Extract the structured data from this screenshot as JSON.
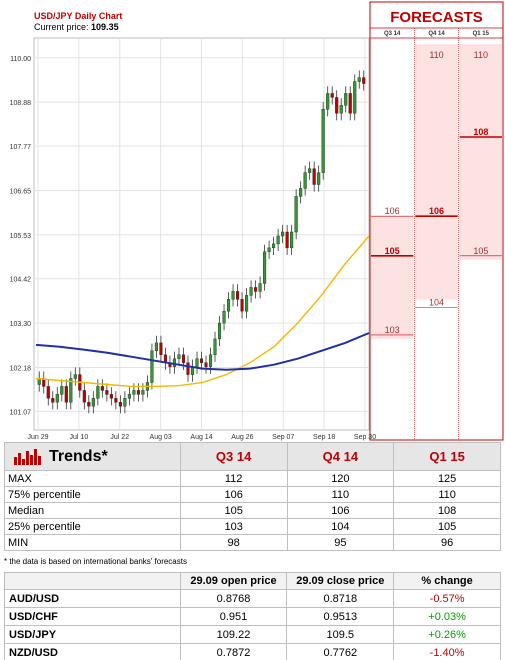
{
  "chart_header": {
    "title": "USD/JPY Daily Chart",
    "price_label": "Current price:",
    "price_value": "109.35"
  },
  "chart_data": {
    "type": "candlestick",
    "y_ticks": [
      "110.00",
      "108.88",
      "107.77",
      "106.65",
      "105.53",
      "104.42",
      "103.30",
      "102.18",
      "101.07"
    ],
    "ylim": [
      100.6,
      110.5
    ],
    "x_ticks": [
      "Jun 29",
      "Jul 10",
      "Jul 22",
      "Aug 03",
      "Aug 14",
      "Aug 26",
      "Sep 07",
      "Sep 18",
      "Sep 30"
    ],
    "candles_close": [
      101.9,
      101.7,
      101.4,
      101.3,
      101.5,
      101.7,
      101.3,
      101.9,
      102.0,
      101.6,
      101.3,
      101.2,
      101.4,
      101.7,
      101.6,
      101.5,
      101.4,
      101.3,
      101.2,
      101.4,
      101.5,
      101.6,
      101.5,
      101.6,
      101.8,
      102.6,
      102.8,
      102.5,
      102.3,
      102.2,
      102.4,
      102.5,
      102.3,
      102.0,
      102.2,
      102.4,
      102.3,
      102.2,
      102.5,
      102.9,
      103.3,
      103.6,
      103.9,
      104.1,
      103.9,
      103.6,
      104.0,
      104.2,
      104.1,
      104.3,
      105.1,
      105.2,
      105.3,
      105.5,
      105.6,
      105.2,
      105.6,
      106.5,
      106.7,
      107.1,
      107.2,
      106.8,
      107.1,
      108.7,
      109.1,
      109.0,
      108.6,
      108.8,
      109.1,
      108.6,
      109.4,
      109.5,
      109.35
    ],
    "series": [
      {
        "name": "",
        "color": "#f5b800",
        "values": [
          101.9,
          101.85,
          101.8,
          101.75,
          101.7,
          101.7,
          101.72,
          101.8,
          102.0,
          102.3,
          102.7,
          103.3,
          104.0,
          104.8,
          105.5
        ]
      },
      {
        "name": "",
        "color": "#1f2fa8",
        "values": [
          102.75,
          102.7,
          102.63,
          102.55,
          102.45,
          102.35,
          102.25,
          102.15,
          102.12,
          102.15,
          102.25,
          102.4,
          102.6,
          102.8,
          103.05
        ]
      }
    ]
  },
  "forecasts": {
    "title": "FORECASTS",
    "columns": [
      {
        "label": "Q3 14",
        "max": "",
        "high": "106",
        "median": "105",
        "low": "103",
        "min": ""
      },
      {
        "label": "Q4 14",
        "max": "110",
        "high": "",
        "median": "106",
        "low": "104",
        "min": ""
      },
      {
        "label": "Q1 15",
        "max": "110",
        "high": "",
        "median": "108",
        "low": "105",
        "min": ""
      }
    ]
  },
  "trends": {
    "title": "Trends*",
    "columns": [
      "Q3 14",
      "Q4 14",
      "Q1 15"
    ],
    "rows": [
      {
        "label": "MAX",
        "values": [
          "112",
          "120",
          "125"
        ]
      },
      {
        "label": "75% percentile",
        "values": [
          "106",
          "110",
          "110"
        ]
      },
      {
        "label": "Median",
        "values": [
          "105",
          "106",
          "108"
        ]
      },
      {
        "label": "25% percentile",
        "values": [
          "103",
          "104",
          "105"
        ]
      },
      {
        "label": "MIN",
        "values": [
          "98",
          "95",
          "96"
        ]
      }
    ],
    "footnote": "* the data is based on international banks' forecasts"
  },
  "fx": {
    "headers": [
      "",
      "29.09 open price",
      "29.09 close price",
      "% change"
    ],
    "rows": [
      {
        "pair": "AUD/USD",
        "open": "0.8768",
        "close": "0.8718",
        "change": "-0.57%",
        "dir": "neg"
      },
      {
        "pair": "USD/CHF",
        "open": "0.951",
        "close": "0.9513",
        "change": "+0.03%",
        "dir": "pos"
      },
      {
        "pair": "USD/JPY",
        "open": "109.22",
        "close": "109.5",
        "change": "+0.26%",
        "dir": "pos"
      },
      {
        "pair": "NZD/USD",
        "open": "0.7872",
        "close": "0.7762",
        "change": "-1.40%",
        "dir": "neg"
      }
    ]
  },
  "colors": {
    "accent": "#c00000",
    "forecast_fill": "#fde2e2",
    "ma_fast": "#f5b800",
    "ma_slow": "#1f2fa8",
    "candle_up": "#2e9b2e",
    "candle_down": "#c00000"
  }
}
